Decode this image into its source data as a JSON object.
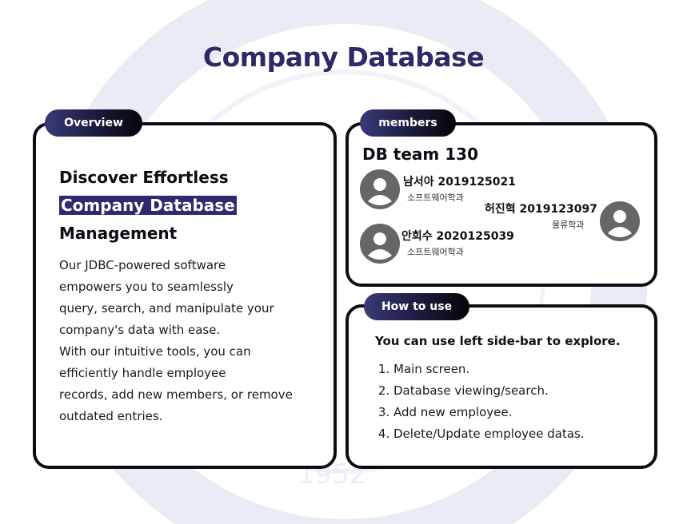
{
  "page": {
    "title": "Company Database",
    "watermark_year": "1952"
  },
  "overview": {
    "tab_label": "Overview",
    "heading_line1": "Discover Effortless",
    "heading_highlight": "Company Database",
    "heading_line3": "Management",
    "description": "Our JDBC-powered software\nempowers you to seamlessly\nquery, search, and manipulate your\ncompany's data with ease.\n With our intuitive tools, you can\nefficiently handle employee\nrecords, add new members, or remove\noutdated entries."
  },
  "members": {
    "tab_label": "members",
    "team_name": "DB team 130",
    "list": [
      {
        "name": "남서아 2019125021",
        "dept": "소프트웨어학과"
      },
      {
        "name": "허진혁 2019123097",
        "dept": "물류학과"
      },
      {
        "name": "안희수 2020125039",
        "dept": "소프트웨어학과"
      }
    ]
  },
  "howto": {
    "tab_label": "How to use",
    "title": "You can use left side-bar to explore.",
    "steps": [
      "Main screen.",
      "Database viewing/search.",
      "Add new employee.",
      "Delete/Update employee datas."
    ]
  },
  "colors": {
    "title": "#2d2a66",
    "highlight": "#2d2a6e",
    "card_border": "#0c0c14",
    "avatar": "#666666"
  }
}
